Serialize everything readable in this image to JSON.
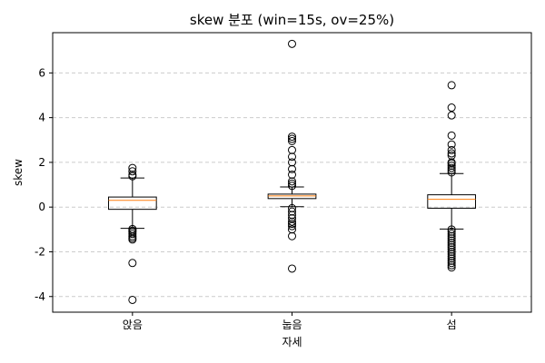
{
  "chart_data": {
    "type": "boxplot",
    "title": "skew 분포 (win=15s, ov=25%)",
    "xlabel": "자세",
    "ylabel": "skew",
    "categories": [
      "앉음",
      "눕음",
      "섬"
    ],
    "ylim": [
      -4.7,
      7.8
    ],
    "yticks": [
      -4,
      -2,
      0,
      2,
      4,
      6
    ],
    "ytick_labels": [
      "-4",
      "-2",
      "0",
      "2",
      "4",
      "6"
    ],
    "grid": "y-dashed",
    "median_color": "#ff7f0e",
    "boxes": [
      {
        "category": "앉음",
        "whisker_low": -0.95,
        "q1": -0.1,
        "median": 0.3,
        "q3": 0.45,
        "whisker_high": 1.3,
        "fliers": [
          1.75,
          1.6,
          1.45,
          1.38,
          -0.98,
          -1.05,
          -1.12,
          -1.2,
          -1.3,
          -1.38,
          -1.45,
          -2.5,
          -4.15
        ]
      },
      {
        "category": "눕음",
        "whisker_low": 0.02,
        "q1": 0.38,
        "median": 0.5,
        "q3": 0.58,
        "whisker_high": 0.9,
        "fliers": [
          7.3,
          3.15,
          3.05,
          2.95,
          2.55,
          2.25,
          2.0,
          1.7,
          1.45,
          1.15,
          1.05,
          0.95,
          -0.05,
          -0.2,
          -0.35,
          -0.5,
          -0.65,
          -0.75,
          -0.85,
          -1.0,
          -1.3,
          -2.75
        ]
      },
      {
        "category": "섬",
        "whisker_low": -0.98,
        "q1": -0.05,
        "median": 0.35,
        "q3": 0.55,
        "whisker_high": 1.5,
        "fliers": [
          5.45,
          4.45,
          4.1,
          3.2,
          2.8,
          2.55,
          2.4,
          2.3,
          2.0,
          1.95,
          1.85,
          1.75,
          1.65,
          1.55,
          -1.0,
          -1.1,
          -1.2,
          -1.3,
          -1.4,
          -1.5,
          -1.6,
          -1.7,
          -1.8,
          -1.9,
          -2.0,
          -2.1,
          -2.2,
          -2.3,
          -2.4,
          -2.5,
          -2.6,
          -2.7
        ]
      }
    ]
  }
}
